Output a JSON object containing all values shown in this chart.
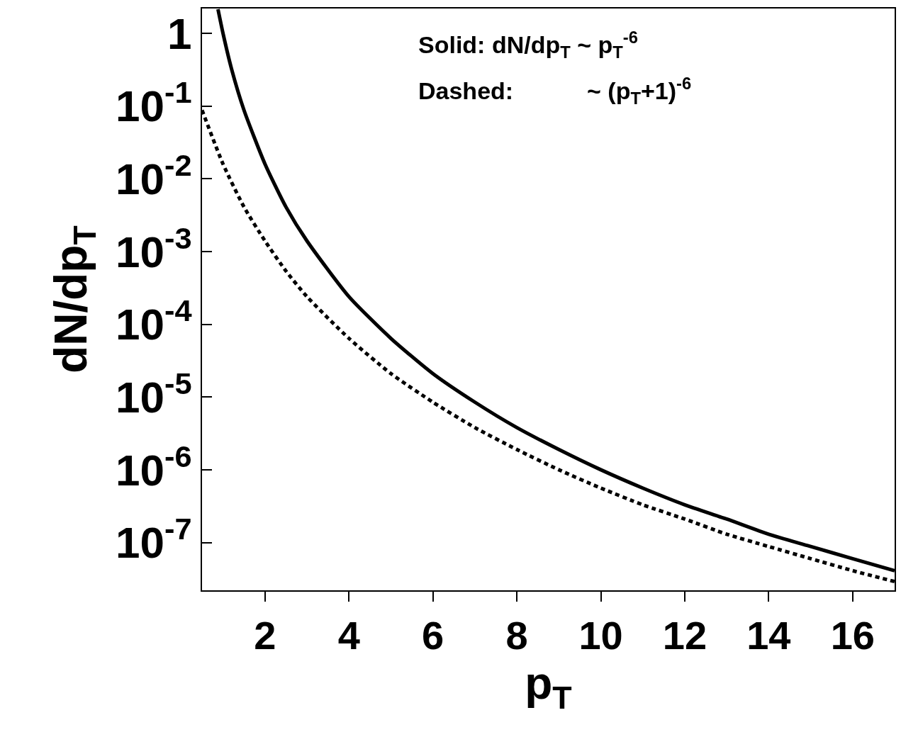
{
  "chart_data": {
    "type": "line",
    "xlabel": "p$_{T}$",
    "ylabel": "dN/dp$_{T}$",
    "annotations": [
      "Solid: dN/dp$_{T}$ ~ p$_{T}$$^{-6}$",
      "Dashed:           ~ (p$_{T}$+1)$^{-6}$"
    ],
    "log": "y",
    "marker": "none",
    "xlim": [
      0.5,
      17
    ],
    "xticks": [
      2,
      4,
      6,
      8,
      10,
      12,
      14,
      16
    ],
    "ylim": [
      2.2e-08,
      2.2
    ],
    "yticks": [
      {
        "value": 1,
        "label": "1"
      },
      {
        "value": 0.1,
        "label": "10$^{-1}$"
      },
      {
        "value": 0.01,
        "label": "10$^{-2}$"
      },
      {
        "value": 0.001,
        "label": "10$^{-3}$"
      },
      {
        "value": 0.0001,
        "label": "10$^{-4}$"
      },
      {
        "value": 1e-05,
        "label": "10$^{-5}$"
      },
      {
        "value": 1e-06,
        "label": "10$^{-6}$"
      },
      {
        "value": 1e-07,
        "label": "10$^{-7}$"
      }
    ],
    "series": [
      {
        "color": "#000000",
        "line_style": "solid",
        "x": [
          0.88,
          1,
          1.2,
          1.5,
          2,
          2.5,
          3,
          4,
          5,
          6,
          7,
          8,
          9,
          10,
          11,
          12,
          13,
          14,
          15,
          16,
          17
        ],
        "values": [
          2.15,
          1,
          0.33,
          0.088,
          0.016,
          0.0041,
          0.0014,
          0.00024,
          6.4e-05,
          2.1e-05,
          8.5e-06,
          3.8e-06,
          1.9e-06,
          1e-06,
          5.6e-07,
          3.3e-07,
          2.1e-07,
          1.3e-07,
          8.8e-08,
          6e-08,
          4.1e-08
        ]
      },
      {
        "color": "#000000",
        "line_style": "dotted",
        "x": [
          0.5,
          1,
          1.5,
          2,
          2.5,
          3,
          4,
          5,
          6,
          7,
          8,
          9,
          10,
          11,
          12,
          13,
          14,
          15,
          16,
          17
        ],
        "values": [
          0.088,
          0.016,
          0.0041,
          0.0014,
          0.00054,
          0.00024,
          6.4e-05,
          2.1e-05,
          8.5e-06,
          3.8e-06,
          1.9e-06,
          1e-06,
          5.6e-07,
          3.3e-07,
          2.1e-07,
          1.3e-07,
          8.8e-08,
          6e-08,
          4.1e-08,
          2.9e-08
        ]
      }
    ]
  }
}
